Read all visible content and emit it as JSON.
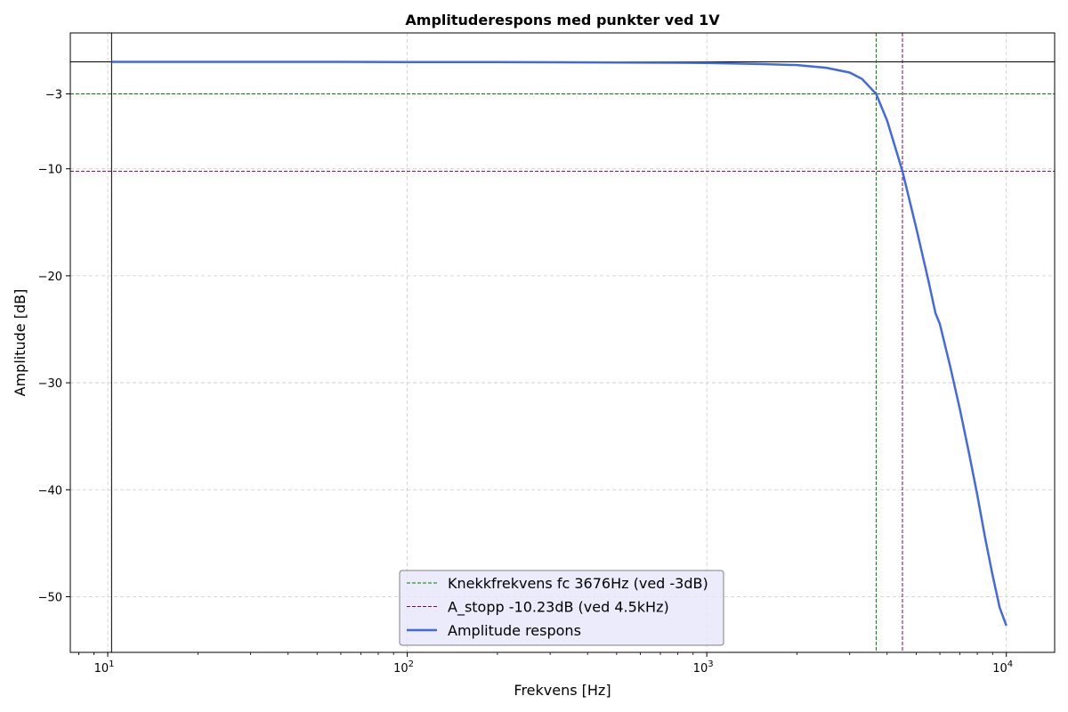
{
  "chart_data": {
    "type": "line",
    "title": "Amplituderespons med punkter ved 1V",
    "xlabel": "Frekvens [Hz]",
    "ylabel": "Amplitude [dB]",
    "xscale": "log",
    "xlim": [
      7.5,
      14500
    ],
    "ylim": [
      -55.2,
      2.7
    ],
    "grid": true,
    "legend_position": "bottom-center",
    "x_ticks": [
      {
        "value": 10,
        "base": "10",
        "exp": "1"
      },
      {
        "value": 100,
        "base": "10",
        "exp": "2"
      },
      {
        "value": 1000,
        "base": "10",
        "exp": "3"
      },
      {
        "value": 10000,
        "base": "10",
        "exp": "4"
      }
    ],
    "y_ticks": [
      {
        "value": -3,
        "label": "−3"
      },
      {
        "value": -10,
        "label": "−10"
      },
      {
        "value": -20,
        "label": "−20"
      },
      {
        "value": -30,
        "label": "−30"
      },
      {
        "value": -40,
        "label": "−40"
      },
      {
        "value": -50,
        "label": "−50"
      }
    ],
    "reference_lines": [
      {
        "orientation": "horizontal",
        "value": 0,
        "color": "#000000",
        "style": "solid"
      },
      {
        "orientation": "vertical",
        "value": 10.3,
        "color": "#000000",
        "style": "solid"
      },
      {
        "orientation": "horizontal",
        "value": -3,
        "color": "#008000",
        "style": "dashed"
      },
      {
        "orientation": "vertical",
        "value": 3676,
        "color": "#008000",
        "style": "dashed"
      },
      {
        "orientation": "horizontal",
        "value": -10.23,
        "color": "#800060",
        "style": "dashed"
      },
      {
        "orientation": "vertical",
        "value": 4500,
        "color": "#800060",
        "style": "dashed"
      }
    ],
    "legend": [
      {
        "label": "Knekkfrekvens fc 3676Hz (ved -3dB)",
        "color": "#008000",
        "style": "dashed"
      },
      {
        "label": "A_stopp -10.23dB (ved 4.5kHz)",
        "color": "#800060",
        "style": "dashed"
      },
      {
        "label": "Amplitude respons",
        "color": "#4169e1",
        "style": "solid"
      }
    ],
    "series": [
      {
        "name": "Amplitude respons",
        "color": "#4169e1",
        "x": [
          10.3,
          20,
          50,
          100,
          200,
          500,
          1000,
          1500,
          2000,
          2500,
          3000,
          3300,
          3676,
          4000,
          4500,
          5000,
          5500,
          5800,
          6000,
          6500,
          7000,
          7500,
          8000,
          8500,
          9000,
          9500,
          10000
        ],
        "y": [
          0,
          0,
          0,
          -0.02,
          -0.03,
          -0.06,
          -0.1,
          -0.2,
          -0.3,
          -0.55,
          -1.0,
          -1.6,
          -3.0,
          -5.5,
          -10.23,
          -15.5,
          -20.5,
          -23.5,
          -24.5,
          -28.5,
          -32.5,
          -36.5,
          -40.5,
          -44.5,
          -48.0,
          -51.0,
          -52.7
        ]
      }
    ]
  }
}
